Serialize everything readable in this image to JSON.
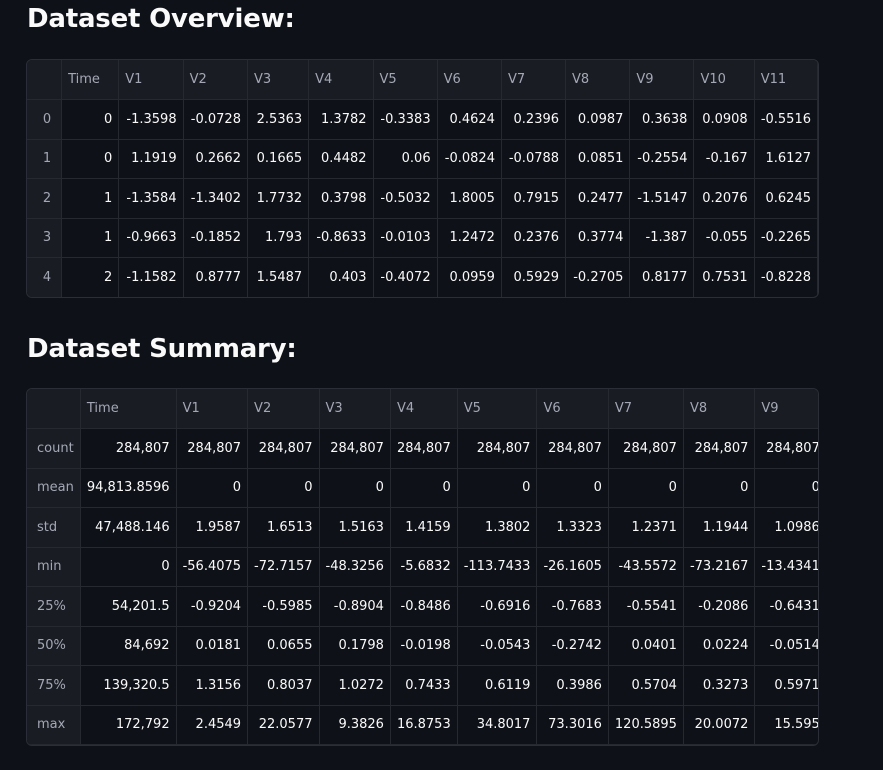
{
  "overview": {
    "title": "Dataset Overview:",
    "columns": [
      "Time",
      "V1",
      "V2",
      "V3",
      "V4",
      "V5",
      "V6",
      "V7",
      "V8",
      "V9",
      "V10",
      "V11"
    ],
    "rows": [
      {
        "index": "0",
        "cells": [
          "0",
          "-1.3598",
          "-0.0728",
          "2.5363",
          "1.3782",
          "-0.3383",
          "0.4624",
          "0.2396",
          "0.0987",
          "0.3638",
          "0.0908",
          "-0.5516"
        ]
      },
      {
        "index": "1",
        "cells": [
          "0",
          "1.1919",
          "0.2662",
          "0.1665",
          "0.4482",
          "0.06",
          "-0.0824",
          "-0.0788",
          "0.0851",
          "-0.2554",
          "-0.167",
          "1.6127"
        ]
      },
      {
        "index": "2",
        "cells": [
          "1",
          "-1.3584",
          "-1.3402",
          "1.7732",
          "0.3798",
          "-0.5032",
          "1.8005",
          "0.7915",
          "0.2477",
          "-1.5147",
          "0.2076",
          "0.6245"
        ]
      },
      {
        "index": "3",
        "cells": [
          "1",
          "-0.9663",
          "-0.1852",
          "1.793",
          "-0.8633",
          "-0.0103",
          "1.2472",
          "0.2376",
          "0.3774",
          "-1.387",
          "-0.055",
          "-0.2265"
        ]
      },
      {
        "index": "4",
        "cells": [
          "2",
          "-1.1582",
          "0.8777",
          "1.5487",
          "0.403",
          "-0.4072",
          "0.0959",
          "0.5929",
          "-0.2705",
          "0.8177",
          "0.7531",
          "-0.8228"
        ]
      }
    ]
  },
  "summary": {
    "title": "Dataset Summary:",
    "columns": [
      "Time",
      "V1",
      "V2",
      "V3",
      "V4",
      "V5",
      "V6",
      "V7",
      "V8",
      "V9"
    ],
    "rows": [
      {
        "index": "count",
        "cells": [
          "284,807",
          "284,807",
          "284,807",
          "284,807",
          "284,807",
          "284,807",
          "284,807",
          "284,807",
          "284,807",
          "284,807"
        ]
      },
      {
        "index": "mean",
        "cells": [
          "94,813.8596",
          "0",
          "0",
          "0",
          "0",
          "0",
          "0",
          "0",
          "0",
          "0"
        ]
      },
      {
        "index": "std",
        "cells": [
          "47,488.146",
          "1.9587",
          "1.6513",
          "1.5163",
          "1.4159",
          "1.3802",
          "1.3323",
          "1.2371",
          "1.1944",
          "1.0986"
        ]
      },
      {
        "index": "min",
        "cells": [
          "0",
          "-56.4075",
          "-72.7157",
          "-48.3256",
          "-5.6832",
          "-113.7433",
          "-26.1605",
          "-43.5572",
          "-73.2167",
          "-13.4341"
        ]
      },
      {
        "index": "25%",
        "cells": [
          "54,201.5",
          "-0.9204",
          "-0.5985",
          "-0.8904",
          "-0.8486",
          "-0.6916",
          "-0.7683",
          "-0.5541",
          "-0.2086",
          "-0.6431"
        ]
      },
      {
        "index": "50%",
        "cells": [
          "84,692",
          "0.0181",
          "0.0655",
          "0.1798",
          "-0.0198",
          "-0.0543",
          "-0.2742",
          "0.0401",
          "0.0224",
          "-0.0514"
        ]
      },
      {
        "index": "75%",
        "cells": [
          "139,320.5",
          "1.3156",
          "0.8037",
          "1.0272",
          "0.7433",
          "0.6119",
          "0.3986",
          "0.5704",
          "0.3273",
          "0.5971"
        ]
      },
      {
        "index": "max",
        "cells": [
          "172,792",
          "2.4549",
          "22.0577",
          "9.3826",
          "16.8753",
          "34.8017",
          "73.3016",
          "120.5895",
          "20.0072",
          "15.595"
        ]
      }
    ]
  }
}
